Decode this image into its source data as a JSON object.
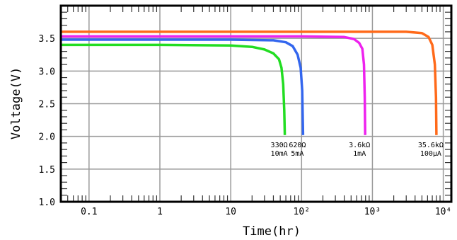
{
  "chart_data": {
    "type": "line",
    "xlabel": "Time(hr)",
    "ylabel": "Voltage(V)",
    "x_scale": "log",
    "xlim": [
      0.04,
      13000
    ],
    "ylim": [
      1.0,
      4.0
    ],
    "grid": true,
    "x_ticks": [
      {
        "value": 0.1,
        "label": "0.1"
      },
      {
        "value": 1,
        "label": "1"
      },
      {
        "value": 10,
        "label": "10"
      },
      {
        "value": 100,
        "label": "10²"
      },
      {
        "value": 1000,
        "label": "10³"
      },
      {
        "value": 10000,
        "label": "10⁴"
      }
    ],
    "y_ticks": [
      {
        "value": 1.0,
        "label": "1.0"
      },
      {
        "value": 1.5,
        "label": "1.5"
      },
      {
        "value": 2.0,
        "label": "2.0"
      },
      {
        "value": 2.5,
        "label": "2.5"
      },
      {
        "value": 3.0,
        "label": "3.0"
      },
      {
        "value": 3.5,
        "label": "3.5"
      }
    ],
    "series": [
      {
        "resistance": "330Ω",
        "current": "10mA",
        "color": "#22dd22",
        "points": [
          [
            0.04,
            3.4
          ],
          [
            1,
            3.4
          ],
          [
            10,
            3.39
          ],
          [
            20,
            3.37
          ],
          [
            30,
            3.33
          ],
          [
            40,
            3.27
          ],
          [
            48,
            3.18
          ],
          [
            52,
            3.05
          ],
          [
            55,
            2.8
          ],
          [
            57,
            2.4
          ],
          [
            58,
            2.02
          ]
        ]
      },
      {
        "resistance": "620Ω",
        "current": "5mA",
        "color": "#3366ee",
        "points": [
          [
            0.04,
            3.48
          ],
          [
            1,
            3.48
          ],
          [
            10,
            3.48
          ],
          [
            40,
            3.47
          ],
          [
            60,
            3.44
          ],
          [
            75,
            3.38
          ],
          [
            88,
            3.25
          ],
          [
            97,
            3.05
          ],
          [
            102,
            2.7
          ],
          [
            105,
            2.02
          ]
        ]
      },
      {
        "resistance": "3.6kΩ",
        "current": "1mA",
        "color": "#ee22ee",
        "points": [
          [
            0.04,
            3.53
          ],
          [
            1,
            3.53
          ],
          [
            10,
            3.53
          ],
          [
            100,
            3.53
          ],
          [
            400,
            3.52
          ],
          [
            550,
            3.49
          ],
          [
            650,
            3.43
          ],
          [
            720,
            3.34
          ],
          [
            760,
            3.1
          ],
          [
            780,
            2.6
          ],
          [
            790,
            2.02
          ]
        ]
      },
      {
        "resistance": "35.6kΩ",
        "current": "100μA",
        "color": "#ff6a1a",
        "points": [
          [
            0.04,
            3.6
          ],
          [
            1,
            3.6
          ],
          [
            10,
            3.6
          ],
          [
            100,
            3.6
          ],
          [
            1000,
            3.6
          ],
          [
            3000,
            3.6
          ],
          [
            5000,
            3.58
          ],
          [
            6200,
            3.52
          ],
          [
            7000,
            3.4
          ],
          [
            7600,
            3.1
          ],
          [
            7900,
            2.6
          ],
          [
            8000,
            2.02
          ]
        ]
      }
    ]
  }
}
